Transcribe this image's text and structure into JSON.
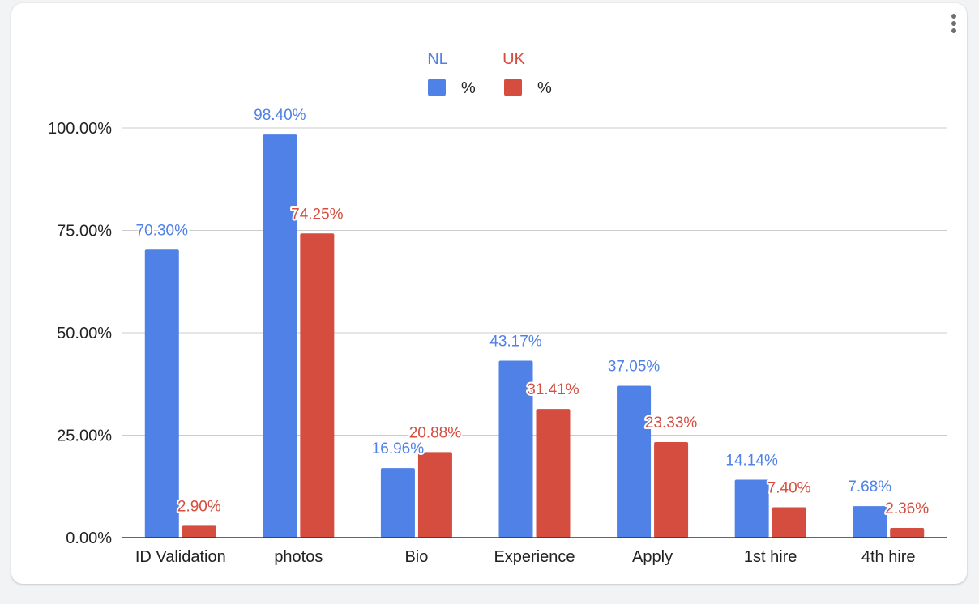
{
  "menu": {
    "icon": "more-vert-icon"
  },
  "colors": {
    "nl": "#4f81e6",
    "uk": "#d44d3f",
    "grid": "#cccccc",
    "axis": "#333333"
  },
  "legend": {
    "groups": [
      {
        "name": "NL",
        "series_label": "%"
      },
      {
        "name": "UK",
        "series_label": "%"
      }
    ]
  },
  "chart_data": {
    "type": "bar",
    "categories": [
      "ID Validation",
      "photos",
      "Bio",
      "Experience",
      "Apply",
      "1st hire",
      "4th hire"
    ],
    "series": [
      {
        "name": "NL %",
        "values": [
          70.3,
          98.4,
          16.96,
          43.17,
          37.05,
          14.14,
          7.68
        ],
        "labels": [
          "70.30%",
          "98.40%",
          "16.96%",
          "43.17%",
          "37.05%",
          "14.14%",
          "7.68%"
        ]
      },
      {
        "name": "UK %",
        "values": [
          2.9,
          74.25,
          20.88,
          31.41,
          23.33,
          7.4,
          2.36
        ],
        "labels": [
          "2.90%",
          "74.25%",
          "20.88%",
          "31.41%",
          "23.33%",
          "7.40%",
          "2.36%"
        ]
      }
    ],
    "ylim": [
      0,
      100
    ],
    "yticks": [
      0,
      25,
      50,
      75,
      100
    ],
    "ytick_labels": [
      "0.00%",
      "25.00%",
      "50.00%",
      "75.00%",
      "100.00%"
    ],
    "grid": true,
    "legend_position": "top-center",
    "title": "",
    "xlabel": "",
    "ylabel": ""
  }
}
